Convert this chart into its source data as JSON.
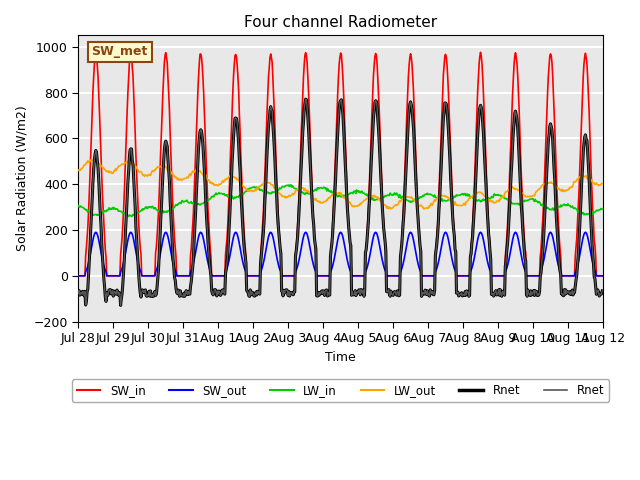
{
  "title": "Four channel Radiometer",
  "ylabel": "Solar Radiation (W/m2)",
  "xlabel": "Time",
  "annotation": "SW_met",
  "ylim": [
    -200,
    1050
  ],
  "yticks": [
    -200,
    0,
    200,
    400,
    600,
    800,
    1000
  ],
  "n_days": 15,
  "dt": 0.5,
  "SW_in_peak": 970,
  "SW_out_peak": 190,
  "LW_in_base": 330,
  "LW_in_amp": 40,
  "LW_out_base": 400,
  "LW_out_amp": 80,
  "colors": {
    "SW_in": "#ff0000",
    "SW_out": "#0000ff",
    "LW_in": "#00cc00",
    "LW_out": "#ffa500",
    "Rnet_thick": "#000000",
    "Rnet_thin": "#555555"
  },
  "bg_color": "#e8e8e8",
  "grid_color": "#ffffff",
  "legend_labels": [
    "SW_in",
    "SW_out",
    "LW_in",
    "LW_out",
    "Rnet",
    "Rnet"
  ],
  "legend_colors": [
    "#ff0000",
    "#0000ff",
    "#00cc00",
    "#ffa500",
    "#000000",
    "#555555"
  ],
  "legend_lw": [
    1.5,
    1.5,
    1.5,
    1.5,
    2.5,
    1.2
  ],
  "tick_labels": [
    "Jul 28",
    "Jul 29",
    "Jul 30",
    "Jul 31",
    "Aug 1",
    "Aug 2",
    "Aug 3",
    "Aug 4",
    "Aug 5",
    "Aug 6",
    "Aug 7",
    "Aug 8",
    "Aug 9",
    "Aug 10",
    "Aug 11",
    "Aug 12"
  ]
}
